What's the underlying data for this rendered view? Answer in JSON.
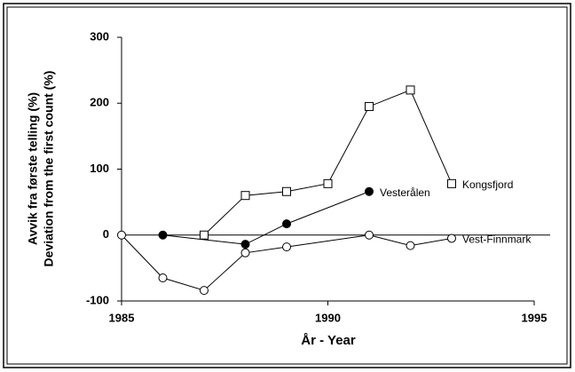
{
  "chart_data": {
    "type": "line",
    "xlabel": "År - Year",
    "ylabel": [
      "Avvik fra første telling (%)",
      "Deviation from the first count (%)"
    ],
    "xlim": [
      1985,
      1995
    ],
    "xticks": [
      1985,
      1990,
      1995
    ],
    "ylim": [
      -100,
      300
    ],
    "yticks": [
      -100,
      0,
      100,
      200,
      300
    ],
    "reference_line_y": 0,
    "series": [
      {
        "name": "Kongsfjord",
        "color": "#000000",
        "marker": "square",
        "filled": false,
        "x": [
          1987,
          1988,
          1989,
          1990,
          1991,
          1992,
          1993
        ],
        "values": [
          0,
          60,
          66,
          78,
          195,
          220,
          78
        ]
      },
      {
        "name": "Vesterålen",
        "color": "#000000",
        "marker": "circle",
        "filled": true,
        "x": [
          1986,
          1988,
          1989,
          1991
        ],
        "values": [
          0,
          -14,
          17,
          66
        ]
      },
      {
        "name": "Vest-Finnmark",
        "color": "#000000",
        "marker": "circle",
        "filled": false,
        "x": [
          1985,
          1986,
          1987,
          1988,
          1989,
          1991,
          1992,
          1993
        ],
        "values": [
          0,
          -65,
          -84,
          -27,
          -18,
          0,
          -16,
          -5
        ]
      }
    ]
  }
}
